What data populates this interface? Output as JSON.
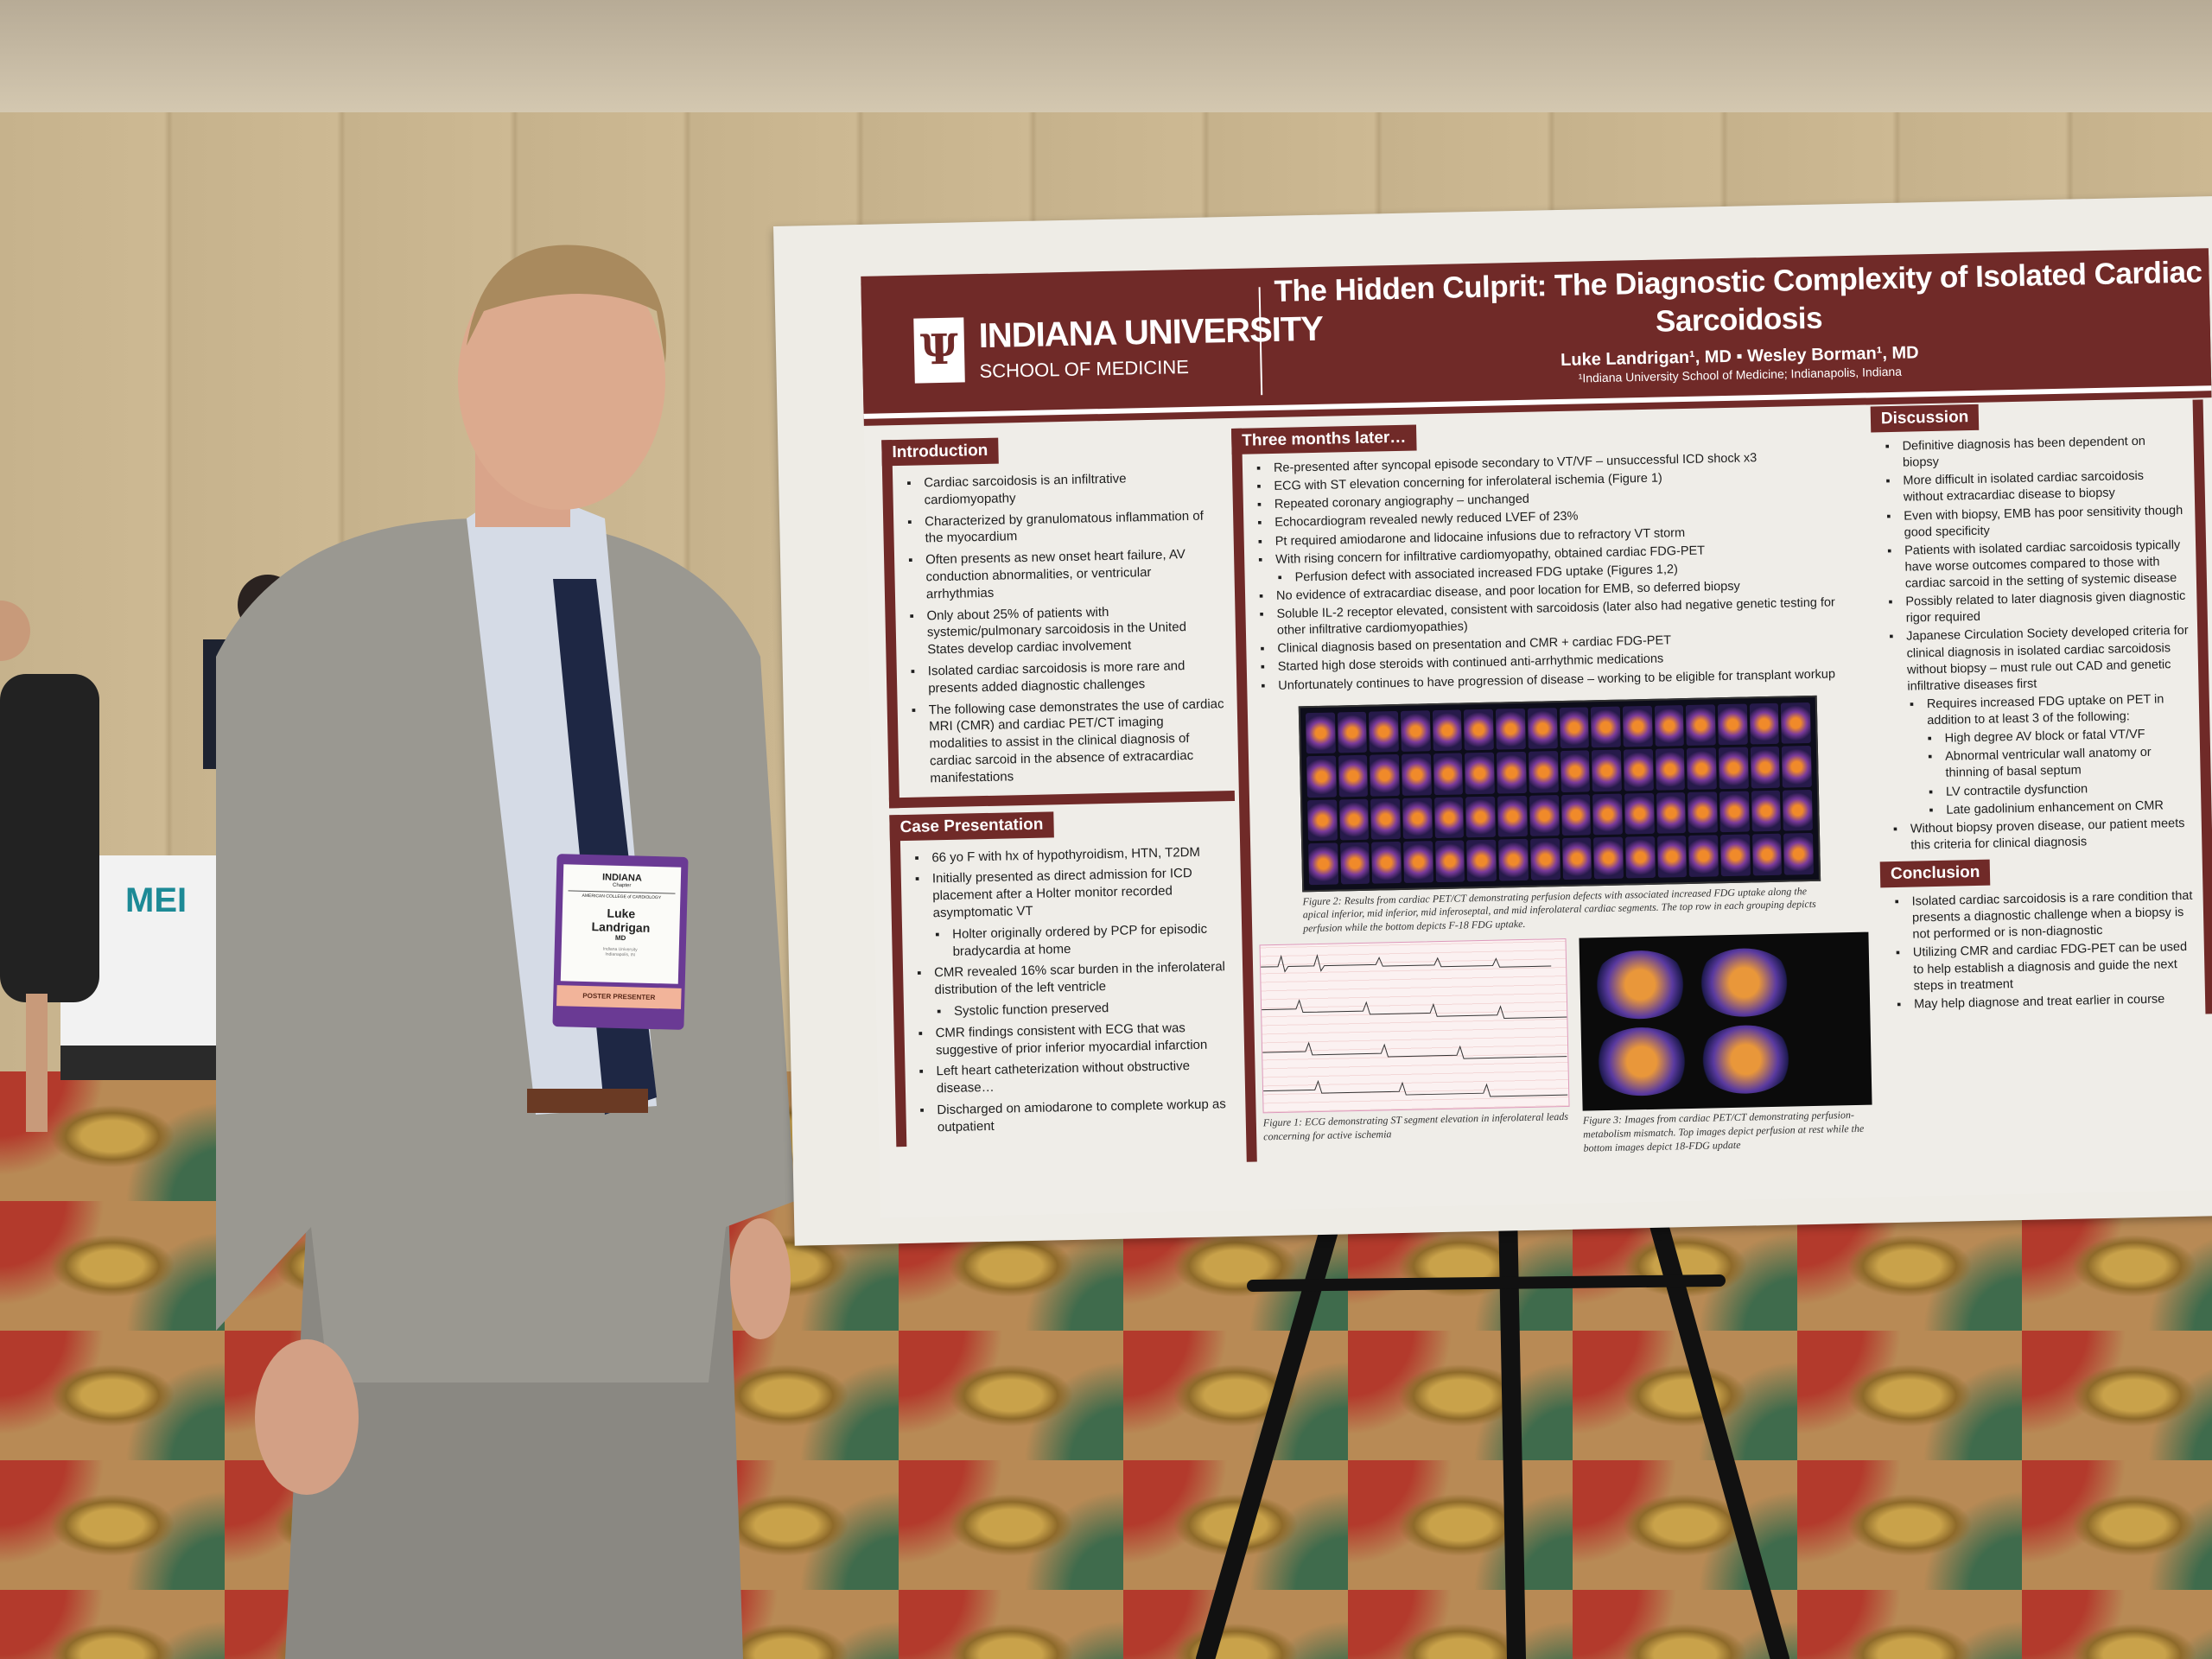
{
  "poster": {
    "logo_text": "INDIANA UNIVERSITY",
    "logo_sub": "SCHOOL OF MEDICINE",
    "title": "The Hidden Culprit: The Diagnostic Complexity of Isolated Cardiac Sarcoidosis",
    "authors": "Luke Landrigan¹, MD  ▪  Wesley Borman¹, MD",
    "affiliation": "¹Indiana University School of Medicine; Indianapolis, Indiana",
    "introduction": {
      "heading": "Introduction",
      "items": [
        "Cardiac sarcoidosis is an infiltrative cardiomyopathy",
        "Characterized by granulomatous inflammation of the myocardium",
        "Often presents as new onset heart failure, AV conduction abnormalities, or ventricular arrhythmias",
        "Only about 25% of patients with systemic/pulmonary sarcoidosis in the United States develop cardiac involvement",
        "Isolated cardiac sarcoidosis is more rare and presents added diagnostic challenges",
        "The following case demonstrates the use of cardiac MRI (CMR) and cardiac PET/CT imaging modalities to assist in the clinical diagnosis of cardiac sarcoid in the absence of extracardiac manifestations"
      ]
    },
    "case": {
      "heading": "Case Presentation",
      "items": [
        "66 yo F with hx of hypothyroidism, HTN, T2DM",
        "Initially presented as direct admission for ICD placement after a Holter monitor recorded asymptomatic VT",
        "Holter originally ordered by PCP for episodic bradycardia at home",
        "CMR revealed 16% scar burden in the inferolateral distribution of the left ventricle",
        "Systolic function preserved",
        "CMR findings consistent with ECG that was suggestive of prior inferior myocardial infarction",
        "Left heart catheterization without obstructive disease…",
        "Discharged on amiodarone to complete workup as outpatient"
      ]
    },
    "later": {
      "heading": "Three months later…",
      "items": [
        "Re-presented after syncopal episode secondary to VT/VF – unsuccessful ICD shock x3",
        "ECG with ST elevation concerning for inferolateral ischemia (Figure 1)",
        "Repeated coronary angiography – unchanged",
        "Echocardiogram revealed newly reduced LVEF of 23%",
        "Pt required amiodarone and lidocaine infusions due to refractory VT storm",
        "With rising concern for infiltrative cardiomyopathy, obtained cardiac FDG-PET",
        "Perfusion defect with associated increased FDG uptake (Figures 1,2)",
        "No evidence of extracardiac disease, and poor location for EMB, so deferred biopsy",
        "Soluble IL-2 receptor elevated, consistent with sarcoidosis (later also had negative genetic testing for other infiltrative cardiomyopathies)",
        "Clinical diagnosis based on presentation and CMR + cardiac FDG-PET",
        "Started high dose steroids with continued anti-arrhythmic medications",
        "Unfortunately continues to have progression of disease – working to be eligible for transplant workup"
      ]
    },
    "figure2_caption": "Figure 2: Results from cardiac PET/CT demonstrating perfusion defects with associated increased FDG uptake along the apical inferior, mid inferior, mid inferoseptal, and mid inferolateral cardiac segments. The top row in each grouping depicts perfusion while the bottom depicts F-18 FDG uptake.",
    "figure1_caption": "Figure 1: ECG demonstrating ST segment elevation in inferolateral leads concerning for active ischemia",
    "figure3_caption": "Figure 3: Images from cardiac PET/CT demonstrating perfusion-metabolism mismatch. Top images depict perfusion at rest while the bottom images depict 18-FDG update",
    "discussion": {
      "heading": "Discussion",
      "items": [
        "Definitive diagnosis has been dependent on biopsy",
        "More difficult in isolated cardiac sarcoidosis without extracardiac disease to biopsy",
        "Even with biopsy, EMB has poor sensitivity though good specificity",
        "Patients with isolated cardiac sarcoidosis typically have worse outcomes compared to those with cardiac sarcoid in the setting of systemic disease",
        "Possibly related to later diagnosis given diagnostic rigor required",
        "Japanese Circulation Society developed criteria for clinical diagnosis in isolated cardiac sarcoidosis without biopsy – must rule out CAD and genetic infiltrative diseases first",
        "Requires increased FDG uptake on PET in addition to at least 3 of the following:",
        "High degree AV block or fatal VT/VF",
        "Abnormal ventricular wall anatomy or thinning of basal septum",
        "LV contractile dysfunction",
        "Late gadolinium enhancement on CMR",
        "Without biopsy proven disease, our patient meets this criteria for clinical diagnosis"
      ]
    },
    "conclusion": {
      "heading": "Conclusion",
      "items": [
        "Isolated cardiac sarcoidosis is a rare condition that presents a diagnostic challenge when a biopsy is not performed or is non-diagnostic",
        "Utilizing CMR and cardiac FDG-PET can be used to help establish a diagnosis and guide the next steps in treatment",
        "May help diagnose and treat earlier in course"
      ]
    },
    "brand_color": "#702a28"
  },
  "badge": {
    "org": "INDIANA",
    "org_sub": "Chapter",
    "college": "AMERICAN COLLEGE of CARDIOLOGY",
    "first_name": "Luke",
    "last_name": "Landrigan",
    "degree": "MD",
    "institution": "Indiana University",
    "city": "Indianapolis, IN",
    "role": "POSTER PRESENTER"
  },
  "background_sign": "MEI"
}
